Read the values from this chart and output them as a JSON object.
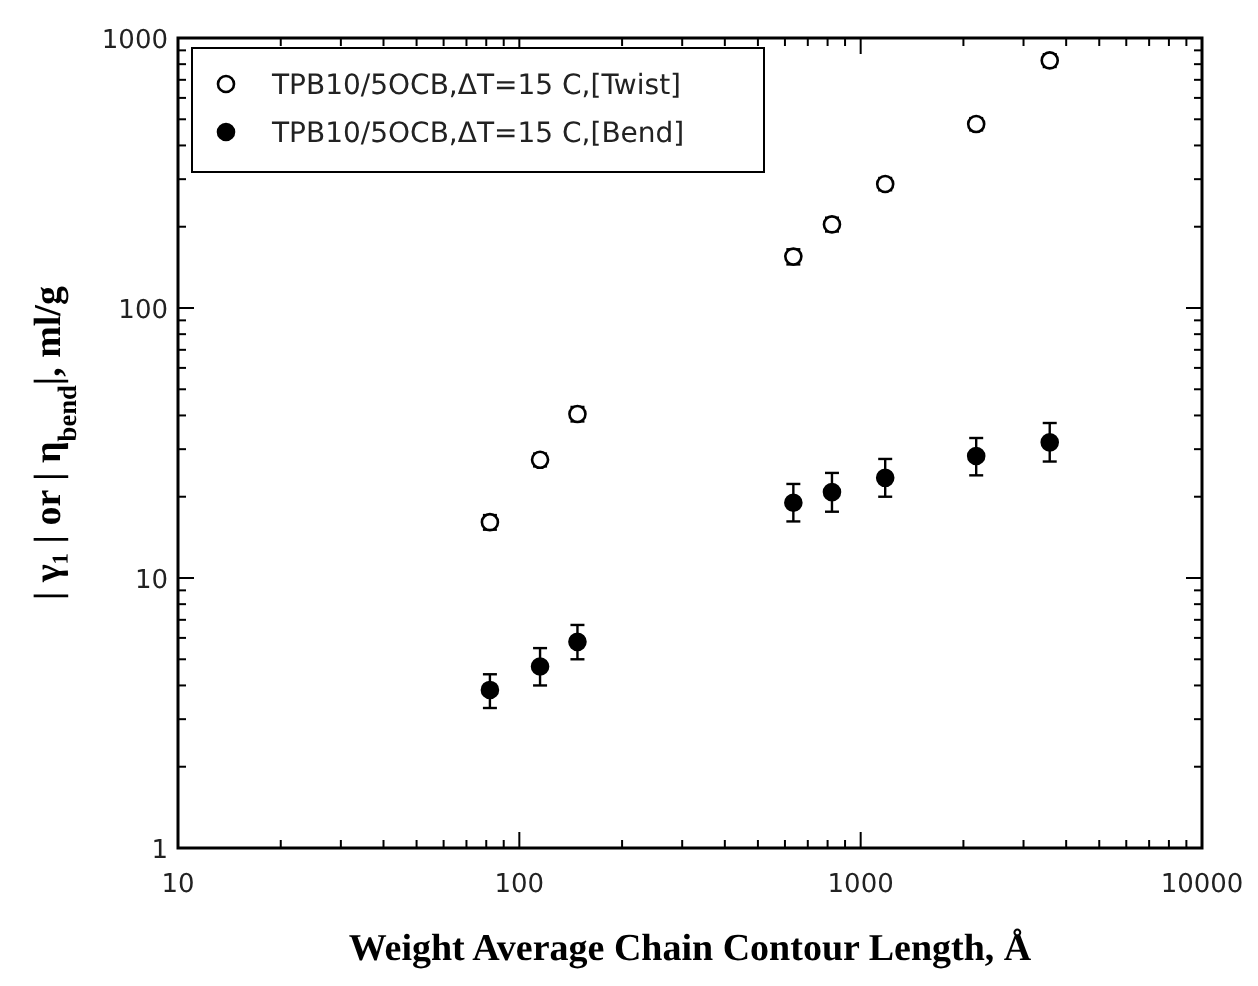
{
  "chart_data": {
    "type": "scatter",
    "xlabel": "Weight Average Chain Contour Length, Å",
    "ylabel": "| γ₁ | or | η$_{bend}$|, ml/g",
    "log": "xy",
    "xlim": [
      10,
      10000
    ],
    "ylim": [
      1,
      1000
    ],
    "xticks": [
      10,
      {
        "value": 20,
        "label": null
      },
      {
        "value": 30,
        "label": null
      },
      {
        "value": 40,
        "label": null
      },
      {
        "value": 50,
        "label": null
      },
      {
        "value": 60,
        "label": null
      },
      {
        "value": 70,
        "label": null
      },
      {
        "value": 80,
        "label": null
      },
      {
        "value": 90,
        "label": null
      },
      100,
      {
        "value": 200,
        "label": null
      },
      {
        "value": 300,
        "label": null
      },
      {
        "value": 400,
        "label": null
      },
      {
        "value": 500,
        "label": null
      },
      {
        "value": 600,
        "label": null
      },
      {
        "value": 700,
        "label": null
      },
      {
        "value": 800,
        "label": null
      },
      {
        "value": 900,
        "label": null
      },
      1000,
      {
        "value": 2000,
        "label": null
      },
      {
        "value": 3000,
        "label": null
      },
      {
        "value": 4000,
        "label": null
      },
      {
        "value": 5000,
        "label": null
      },
      {
        "value": 6000,
        "label": null
      },
      {
        "value": 7000,
        "label": null
      },
      {
        "value": 8000,
        "label": null
      },
      {
        "value": 9000,
        "label": null
      },
      10000
    ],
    "yticks": [
      1,
      {
        "value": 2,
        "label": null
      },
      {
        "value": 3,
        "label": null
      },
      {
        "value": 4,
        "label": null
      },
      {
        "value": 5,
        "label": null
      },
      {
        "value": 6,
        "label": null
      },
      {
        "value": 7,
        "label": null
      },
      {
        "value": 8,
        "label": null
      },
      {
        "value": 9,
        "label": null
      },
      10,
      {
        "value": 20,
        "label": null
      },
      {
        "value": 30,
        "label": null
      },
      {
        "value": 40,
        "label": null
      },
      {
        "value": 50,
        "label": null
      },
      {
        "value": 60,
        "label": null
      },
      {
        "value": 70,
        "label": null
      },
      {
        "value": 80,
        "label": null
      },
      {
        "value": 90,
        "label": null
      },
      100,
      {
        "value": 200,
        "label": null
      },
      {
        "value": 300,
        "label": null
      },
      {
        "value": 400,
        "label": null
      },
      {
        "value": 500,
        "label": null
      },
      {
        "value": 600,
        "label": null
      },
      {
        "value": 700,
        "label": null
      },
      {
        "value": 800,
        "label": null
      },
      {
        "value": 900,
        "label": null
      },
      1000
    ],
    "x": [
      82,
      115,
      148,
      635,
      824,
      1180,
      2180,
      3580
    ],
    "marker": "circle",
    "legend": "top left",
    "grid": false,
    "series": [
      {
        "name": "TPB10/5OCB,ΔT=15 C,[Twist]",
        "color": "#ffffff",
        "values": [
          16.1,
          27.4,
          40.5,
          155,
          204,
          288,
          480,
          826
        ],
        "errors": [
          1,
          1.5,
          2.5,
          10,
          12,
          15,
          25,
          45
        ]
      },
      {
        "name": "TPB10/5OCB,ΔT=15 C,[Bend]",
        "color": "#000000",
        "values": [
          3.85,
          4.7,
          5.8,
          19,
          20.8,
          23.5,
          28.3,
          31.8
        ],
        "errors": [
          [
            3.3,
            4.4
          ],
          [
            4.0,
            5.5
          ],
          [
            5.0,
            6.7
          ],
          [
            16.2,
            22.3
          ],
          [
            17.6,
            24.5
          ],
          [
            20,
            27.6
          ],
          [
            24,
            33
          ],
          [
            27,
            37.5
          ]
        ]
      }
    ]
  }
}
